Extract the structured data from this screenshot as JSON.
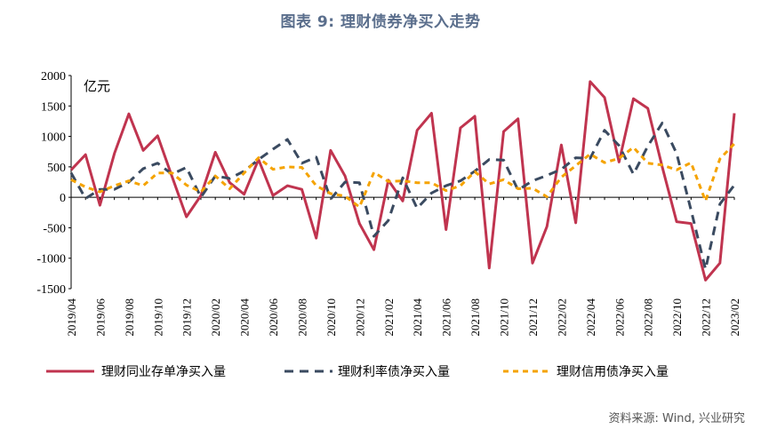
{
  "header": {
    "title": "图表 9:   理财债券净买入走势",
    "source": "资料来源: Wind, 兴业研究"
  },
  "chart_data": {
    "type": "line",
    "unit_label": "亿元",
    "ylim": [
      -1500,
      2000
    ],
    "yticks": [
      -1500,
      -1000,
      -500,
      0,
      500,
      1000,
      1500,
      2000
    ],
    "x": [
      "2019/04",
      "2019/05",
      "2019/06",
      "2019/07",
      "2019/08",
      "2019/09",
      "2019/10",
      "2019/11",
      "2019/12",
      "2020/01",
      "2020/02",
      "2020/03",
      "2020/04",
      "2020/05",
      "2020/06",
      "2020/07",
      "2020/08",
      "2020/09",
      "2020/10",
      "2020/11",
      "2020/12",
      "2021/01",
      "2021/02",
      "2021/03",
      "2021/04",
      "2021/05",
      "2021/06",
      "2021/07",
      "2021/08",
      "2021/09",
      "2021/10",
      "2021/11",
      "2021/12",
      "2022/01",
      "2022/02",
      "2022/03",
      "2022/04",
      "2022/05",
      "2022/06",
      "2022/07",
      "2022/08",
      "2022/09",
      "2022/10",
      "2022/11",
      "2022/12",
      "2023/01",
      "2023/02"
    ],
    "xtick_labels": [
      "2019/04",
      "2019/06",
      "2019/08",
      "2019/10",
      "2019/12",
      "2020/02",
      "2020/04",
      "2020/06",
      "2020/08",
      "2020/10",
      "2020/12",
      "2021/02",
      "2021/04",
      "2021/06",
      "2021/08",
      "2021/10",
      "2021/12",
      "2022/02",
      "2022/04",
      "2022/06",
      "2022/08",
      "2022/10",
      "2022/12",
      "2023/02"
    ],
    "series": [
      {
        "name": "理财同业存单净买入量",
        "color": "#c0344f",
        "dash": "solid",
        "values": [
          450,
          700,
          -130,
          720,
          1370,
          770,
          1010,
          340,
          -320,
          30,
          740,
          240,
          50,
          620,
          30,
          190,
          130,
          -670,
          770,
          350,
          -430,
          -860,
          280,
          -60,
          1100,
          1380,
          -530,
          1140,
          1330,
          -1160,
          1080,
          1290,
          -1080,
          -480,
          860,
          -420,
          1900,
          1640,
          580,
          1620,
          1460,
          500,
          -400,
          -430,
          -1360,
          -1080,
          1380
        ]
      },
      {
        "name": "理财利率债净买入量",
        "color": "#3a4a60",
        "dash": "dashed",
        "values": [
          400,
          -20,
          130,
          130,
          250,
          470,
          560,
          380,
          490,
          0,
          350,
          310,
          430,
          620,
          790,
          950,
          560,
          660,
          -30,
          250,
          240,
          -640,
          -380,
          320,
          -180,
          70,
          190,
          270,
          430,
          620,
          610,
          120,
          270,
          360,
          460,
          650,
          640,
          1100,
          850,
          380,
          840,
          1220,
          720,
          -210,
          -1180,
          -110,
          200
        ]
      },
      {
        "name": "理财信用债净买入量",
        "color": "#f5a300",
        "dash": "dotted",
        "values": [
          290,
          170,
          90,
          190,
          270,
          190,
          400,
          400,
          200,
          90,
          350,
          140,
          400,
          650,
          460,
          500,
          490,
          190,
          60,
          20,
          -160,
          410,
          260,
          270,
          240,
          240,
          110,
          190,
          420,
          220,
          290,
          140,
          150,
          10,
          330,
          520,
          710,
          570,
          640,
          820,
          560,
          530,
          450,
          570,
          -60,
          630,
          880
        ]
      }
    ]
  }
}
